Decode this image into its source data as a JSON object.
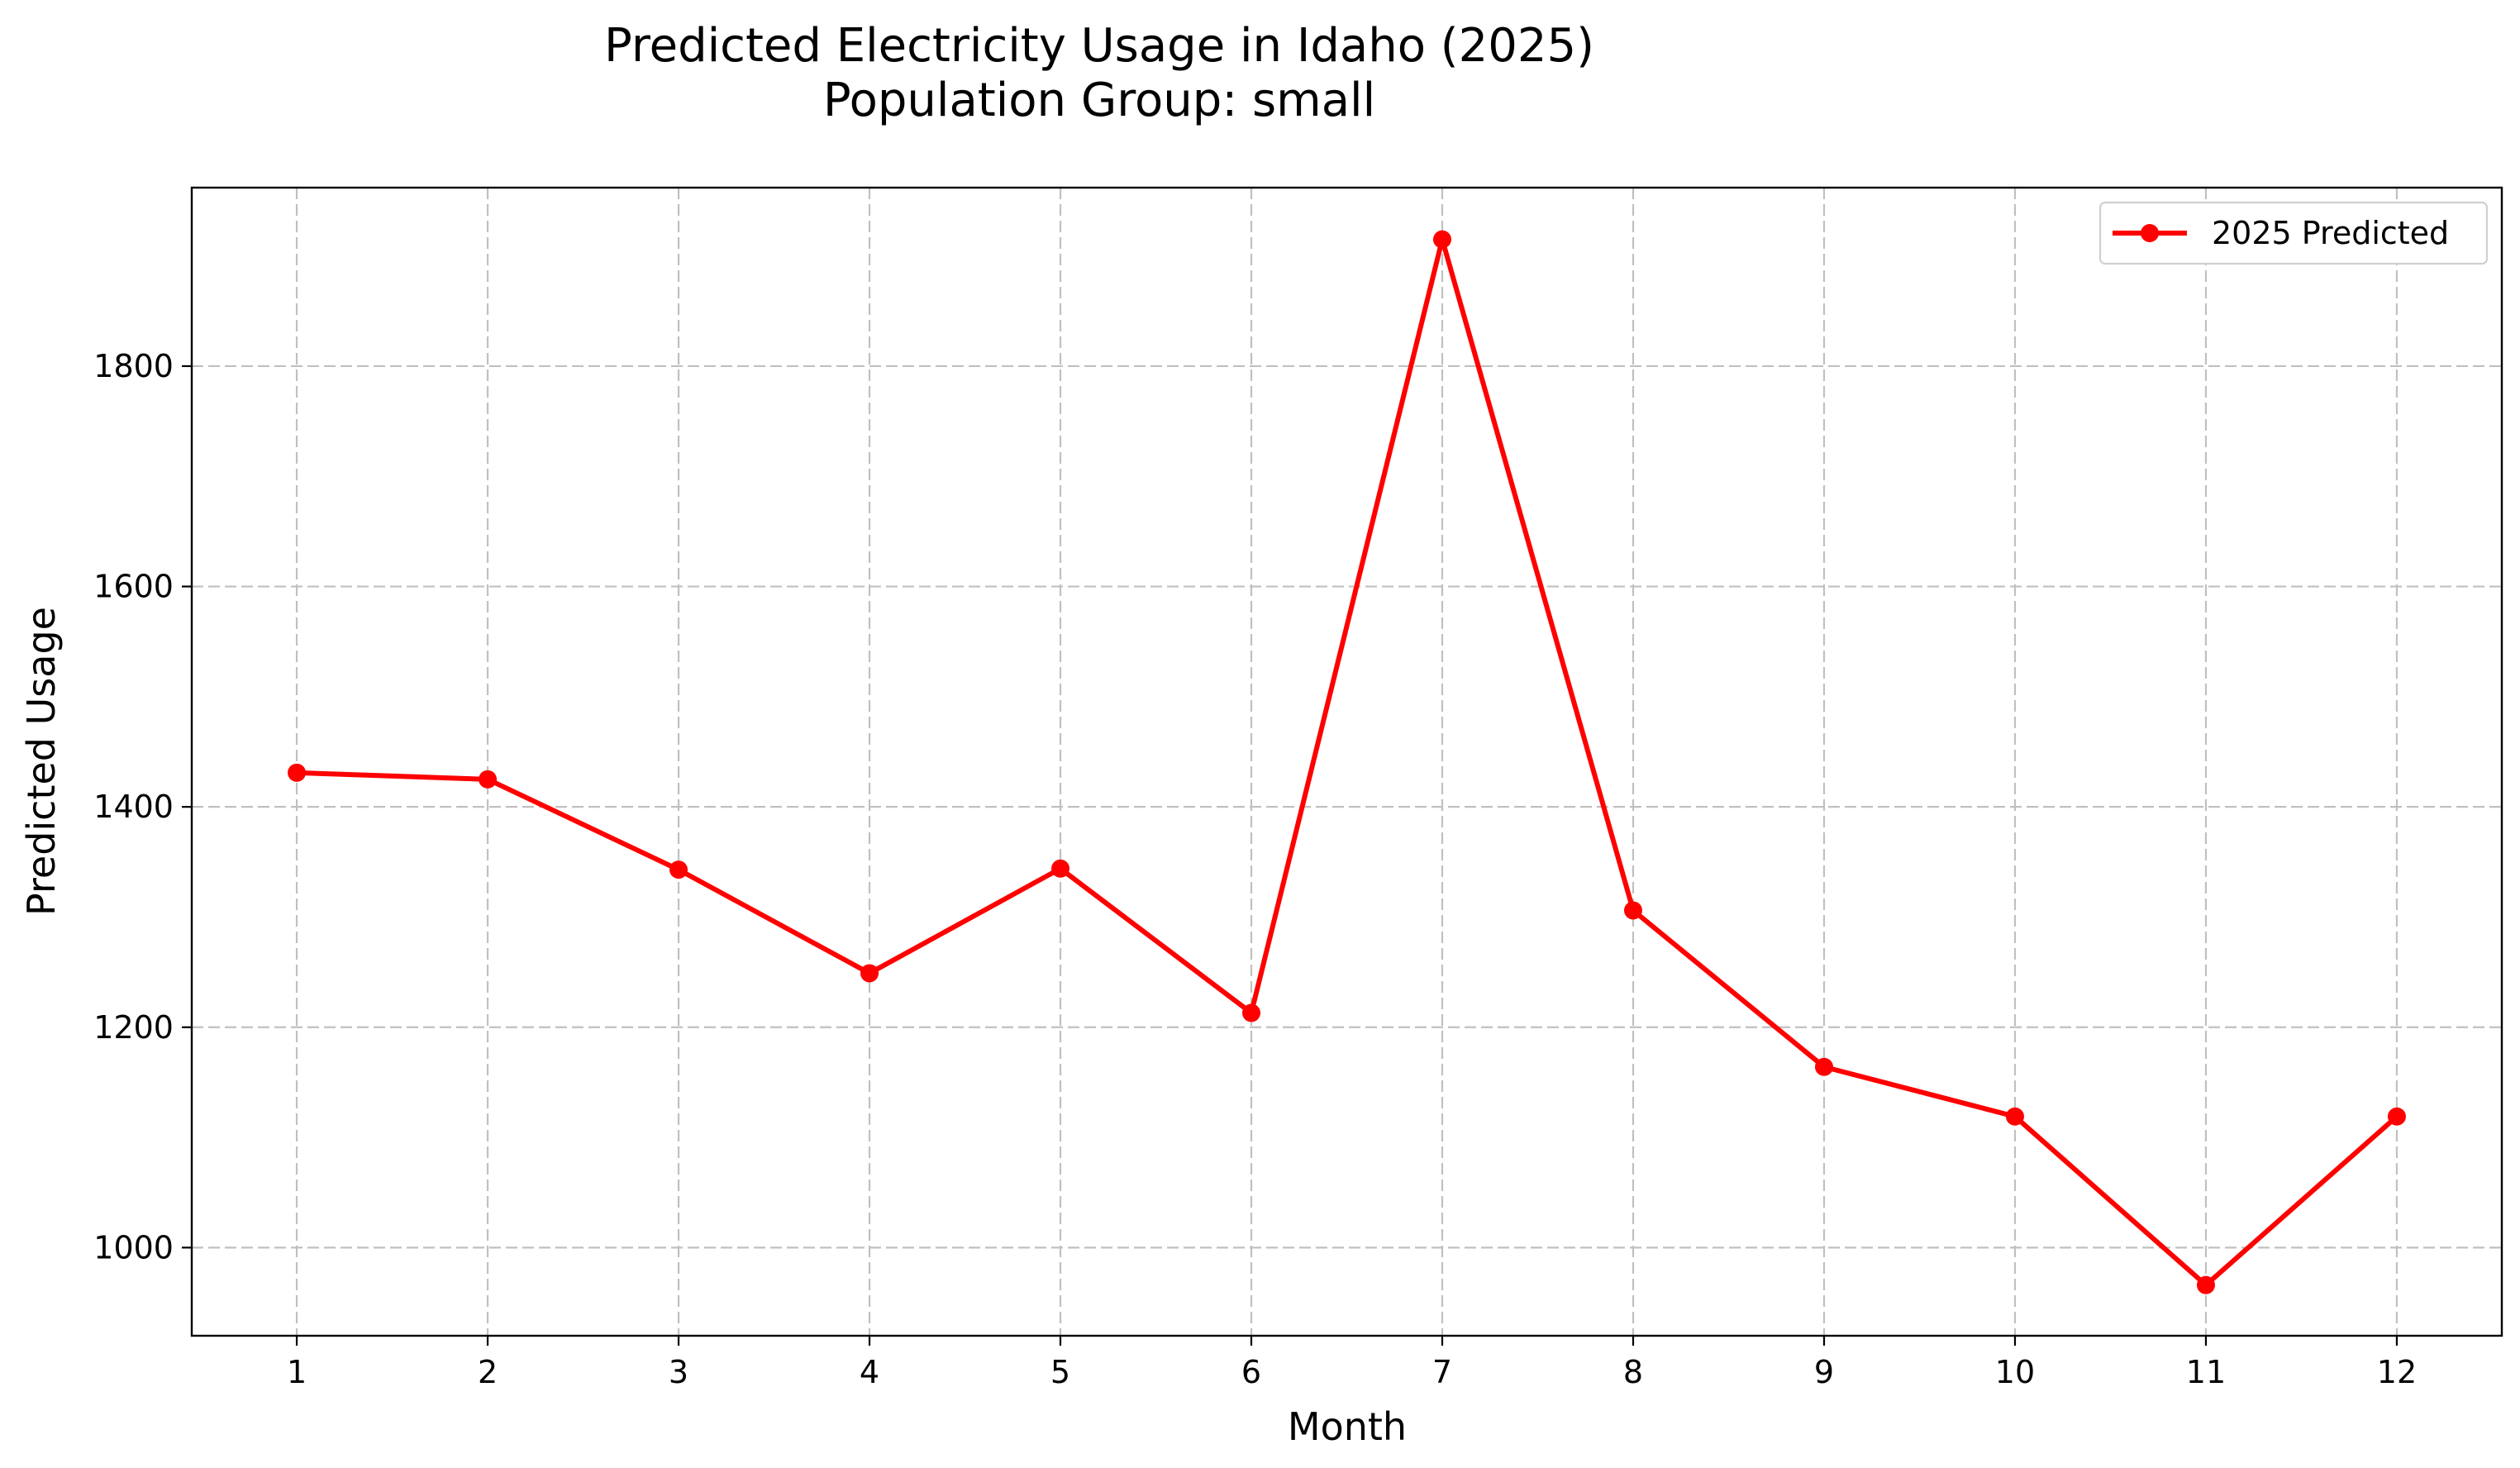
{
  "chart_data": {
    "type": "line",
    "title": "Predicted Electricity Usage in Idaho (2025)",
    "subtitle": "Population Group: small",
    "xlabel": "Month",
    "ylabel": "Predicted Usage",
    "x": [
      1,
      2,
      3,
      4,
      5,
      6,
      7,
      8,
      9,
      10,
      11,
      12
    ],
    "x_tick_labels": [
      "1",
      "2",
      "3",
      "4",
      "5",
      "6",
      "7",
      "8",
      "9",
      "10",
      "11",
      "12"
    ],
    "y_ticks": [
      1000,
      1200,
      1400,
      1600,
      1800
    ],
    "y_tick_labels": [
      "1000",
      "1200",
      "1400",
      "1600",
      "1800"
    ],
    "xlim": [
      0.45,
      12.55
    ],
    "ylim": [
      920,
      1962
    ],
    "grid": true,
    "legend_position": "top-right",
    "series": [
      {
        "name": "2025 Predicted",
        "color": "#ff0000",
        "marker": "circle",
        "values": [
          1431,
          1425,
          1343,
          1249,
          1344,
          1213,
          1915,
          1306,
          1164,
          1119,
          966,
          1119
        ]
      }
    ]
  }
}
